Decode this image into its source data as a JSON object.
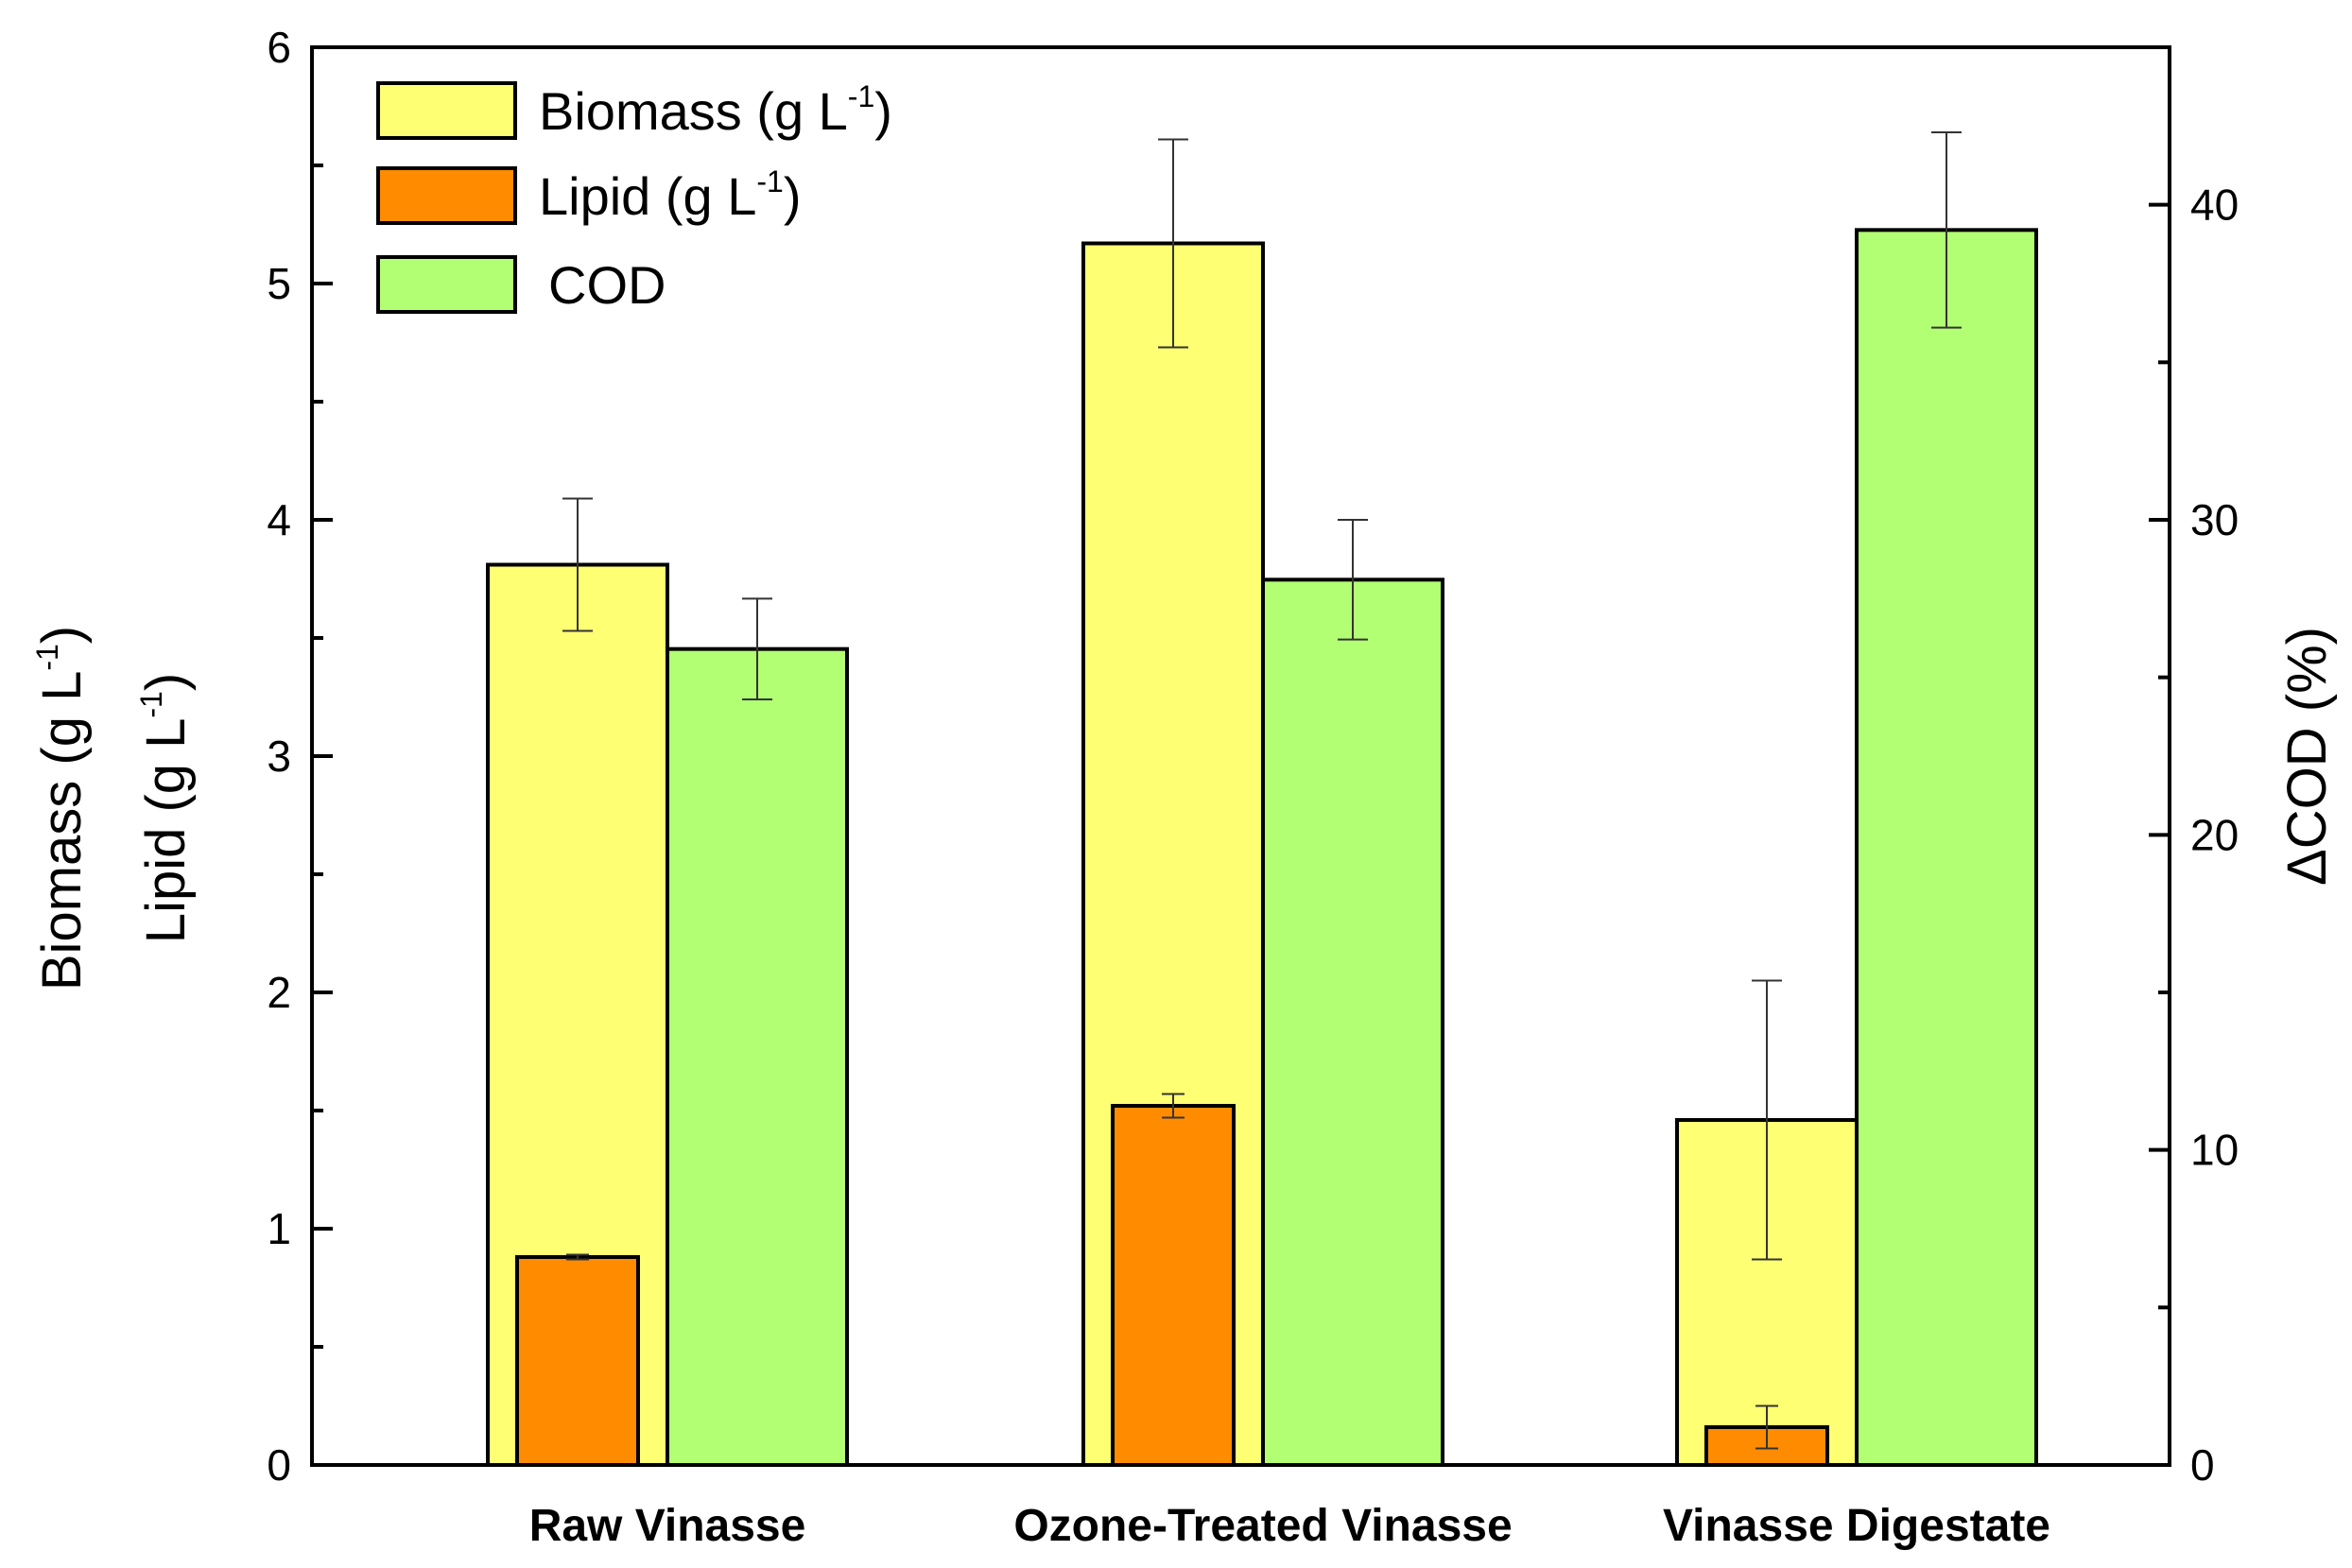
{
  "chart_data": {
    "type": "bar",
    "categories": [
      "Raw Vinasse",
      "Ozone-Treated Vinasse",
      "Vinasse Digestate"
    ],
    "series": [
      {
        "name": "Biomass",
        "legend_main": "Biomass (g L",
        "legend_sup": "-1",
        "legend_close": ")",
        "axis": "left",
        "color": "#ffff73",
        "values": [
          3.81,
          5.17,
          1.46
        ],
        "errors": [
          0.28,
          0.44,
          0.59
        ]
      },
      {
        "name": "Lipid",
        "legend_main": "Lipid (g L",
        "legend_sup": "-1",
        "legend_close": ")",
        "axis": "left",
        "color": "#ff8c00",
        "values": [
          0.88,
          1.52,
          0.16
        ],
        "errors": [
          0.01,
          0.05,
          0.09
        ]
      },
      {
        "name": "COD",
        "legend_main": "COD",
        "legend_sup": "",
        "legend_close": "",
        "axis": "right",
        "color": "#b3ff73",
        "values": [
          25.9,
          28.1,
          39.2
        ],
        "errors": [
          1.6,
          1.9,
          3.1
        ]
      }
    ],
    "left_axis": {
      "label_line1_main": "Biomass (g L",
      "label_line1_sup": "-1",
      "label_line1_close": ")",
      "label_line2_main": "Lipid (g L",
      "label_line2_sup": "-1",
      "label_line2_close": ")",
      "ylim": [
        0,
        6
      ],
      "ticks": [
        "0",
        "1",
        "2",
        "3",
        "4",
        "5",
        "6"
      ]
    },
    "right_axis": {
      "label": "ΔCOD (%)",
      "ylim": [
        0,
        45
      ],
      "ticks": [
        "0",
        "10",
        "20",
        "30",
        "40"
      ]
    },
    "legend_position": "top-left",
    "grid": false
  }
}
